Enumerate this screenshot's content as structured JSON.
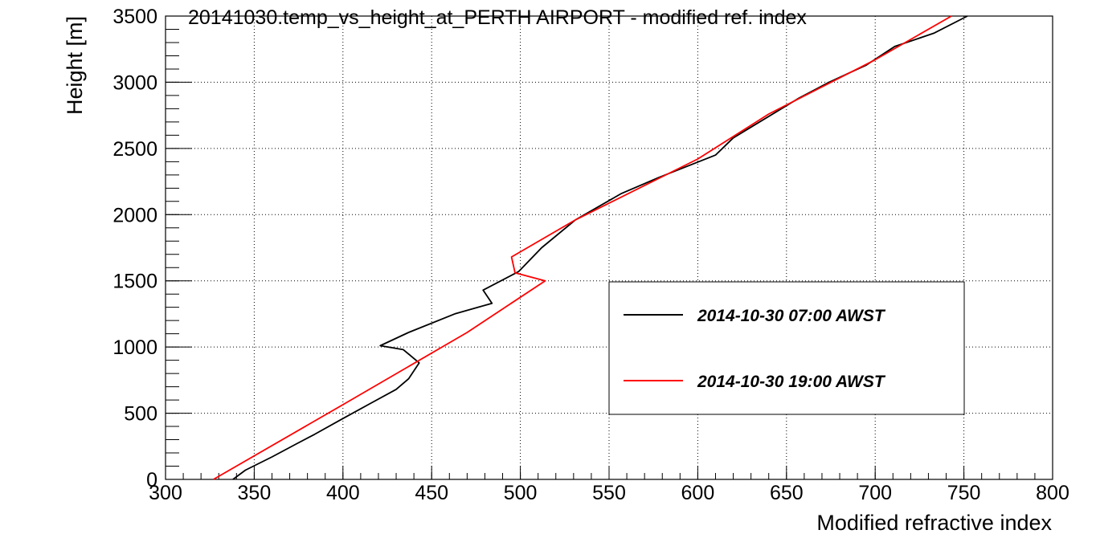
{
  "chart_data": {
    "type": "line",
    "title": "20141030.temp_vs_height_at_PERTH AIRPORT - modified ref. index",
    "xlabel": "Modified refractive index",
    "ylabel": "Height [m]",
    "xlim": [
      300,
      800
    ],
    "ylim": [
      0,
      3500
    ],
    "x_ticks": [
      "300",
      "350",
      "400",
      "450",
      "500",
      "550",
      "600",
      "650",
      "700",
      "750",
      "800"
    ],
    "y_ticks": [
      "0",
      "500",
      "1000",
      "1500",
      "2000",
      "2500",
      "3000",
      "3500"
    ],
    "grid": true,
    "legend_position": "center-right",
    "series": [
      {
        "name": "2014-10-30 07:00 AWST",
        "color": "#000000",
        "points": [
          [
            338,
            0
          ],
          [
            345,
            70
          ],
          [
            360,
            170
          ],
          [
            374,
            270
          ],
          [
            384,
            340
          ],
          [
            400,
            460
          ],
          [
            415,
            570
          ],
          [
            430,
            680
          ],
          [
            437,
            760
          ],
          [
            443,
            880
          ],
          [
            434,
            980
          ],
          [
            421,
            1010
          ],
          [
            437,
            1110
          ],
          [
            463,
            1250
          ],
          [
            484,
            1330
          ],
          [
            479,
            1430
          ],
          [
            499,
            1570
          ],
          [
            512,
            1750
          ],
          [
            531,
            1960
          ],
          [
            557,
            2160
          ],
          [
            578,
            2280
          ],
          [
            610,
            2450
          ],
          [
            620,
            2580
          ],
          [
            657,
            2880
          ],
          [
            674,
            3000
          ],
          [
            695,
            3130
          ],
          [
            711,
            3270
          ],
          [
            733,
            3370
          ],
          [
            752,
            3500
          ]
        ]
      },
      {
        "name": "2014-10-30 19:00 AWST",
        "color": "#ff0000",
        "points": [
          [
            327,
            0
          ],
          [
            402,
            580
          ],
          [
            470,
            1110
          ],
          [
            514,
            1500
          ],
          [
            497,
            1560
          ],
          [
            495,
            1680
          ],
          [
            531,
            1960
          ],
          [
            600,
            2420
          ],
          [
            640,
            2760
          ],
          [
            700,
            3170
          ],
          [
            743,
            3500
          ]
        ]
      }
    ]
  }
}
